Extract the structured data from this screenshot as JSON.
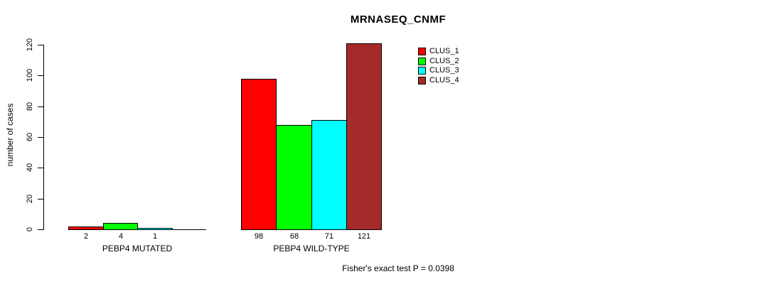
{
  "title": "MRNASEQ_CNMF",
  "legend": [
    {
      "label": "CLUS_1",
      "color": "#FF0000"
    },
    {
      "label": "CLUS_2",
      "color": "#00FF00"
    },
    {
      "label": "CLUS_3",
      "color": "#00FFFF"
    },
    {
      "label": "CLUS_4",
      "color": "#A52A2A"
    }
  ],
  "chart_data": {
    "type": "bar",
    "title": "MRNASEQ_CNMF",
    "xlabel": "",
    "ylabel": "number of cases",
    "ylim": [
      0,
      120
    ],
    "yticks": [
      0,
      20,
      40,
      60,
      80,
      100,
      120
    ],
    "grid": false,
    "legend_position": "upper-right-inside",
    "categories": [
      "PEBP4 MUTATED",
      "PEBP4 WILD-TYPE"
    ],
    "series": [
      {
        "name": "CLUS_1",
        "color": "#FF0000",
        "values": [
          2,
          98
        ]
      },
      {
        "name": "CLUS_2",
        "color": "#00FF00",
        "values": [
          4,
          68
        ]
      },
      {
        "name": "CLUS_3",
        "color": "#00FFFF",
        "values": [
          1,
          71
        ]
      },
      {
        "name": "CLUS_4",
        "color": "#A52A2A",
        "values": [
          0,
          121
        ]
      }
    ],
    "bar_value_labels": [
      [
        "2",
        "4",
        "1",
        ""
      ],
      [
        "98",
        "68",
        "71",
        "121"
      ]
    ],
    "annotation": "Fisher's exact test P = 0.0398"
  }
}
